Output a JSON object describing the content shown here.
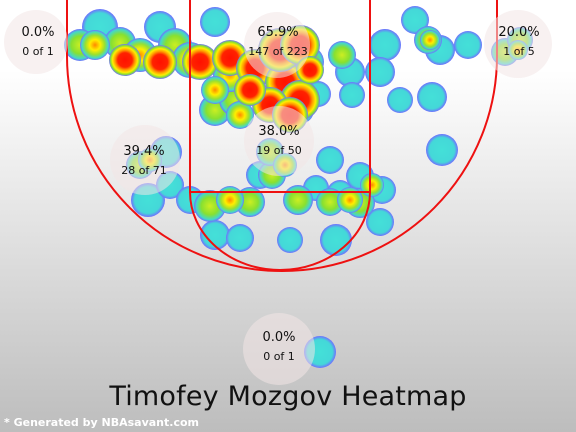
{
  "chart_data": {
    "type": "heatmap",
    "title": "Timofey Mozgov Heatmap",
    "zones": [
      {
        "id": "left-corner",
        "pct": "0.0%",
        "made": 0,
        "attempts": 1,
        "text": "0 of 1"
      },
      {
        "id": "paint",
        "pct": "65.9%",
        "made": 147,
        "attempts": 223,
        "text": "147 of 223"
      },
      {
        "id": "right-corner",
        "pct": "20.0%",
        "made": 1,
        "attempts": 5,
        "text": "1 of 5"
      },
      {
        "id": "left-midrange",
        "pct": "39.4%",
        "made": 28,
        "attempts": 71,
        "text": "28 of 71"
      },
      {
        "id": "mid-range-center",
        "pct": "38.0%",
        "made": 19,
        "attempts": 50,
        "text": "19 of 50"
      },
      {
        "id": "backcourt",
        "pct": "0.0%",
        "made": 0,
        "attempts": 1,
        "text": "0 of 1"
      }
    ],
    "colors": {
      "court_lines": "#ee1111",
      "hot": "#ff1a00",
      "warm": "#ffee00",
      "mild": "#88ee22",
      "cool": "#44ddcc",
      "outline": "#6666ff"
    }
  },
  "credit": "* Generated by NBAsavant.com"
}
